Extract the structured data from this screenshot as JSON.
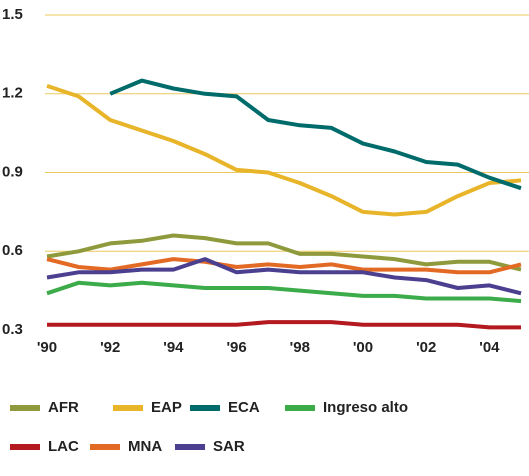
{
  "chart_data": {
    "type": "line",
    "categories": [
      "'90",
      null,
      "'92",
      null,
      "'94",
      null,
      "'96",
      null,
      "'98",
      null,
      "'00",
      null,
      "'02",
      null,
      "'04",
      null
    ],
    "ylim": [
      0.3,
      1.5
    ],
    "yticks": [
      0.3,
      0.6,
      0.9,
      1.2,
      1.5
    ],
    "grid": true,
    "grid_color": "#ecc95c",
    "legend": "bottom",
    "series": [
      {
        "name": "AFR",
        "color": "#8e9a3c",
        "values": [
          0.58,
          0.6,
          0.63,
          0.64,
          0.66,
          0.65,
          0.63,
          0.63,
          0.59,
          0.59,
          0.58,
          0.57,
          0.55,
          0.56,
          0.56,
          0.53
        ]
      },
      {
        "name": "EAP",
        "color": "#e8b52a",
        "values": [
          1.23,
          1.19,
          1.1,
          1.06,
          1.02,
          0.97,
          0.91,
          0.9,
          0.86,
          0.81,
          0.75,
          0.74,
          0.75,
          0.81,
          0.86,
          0.87
        ]
      },
      {
        "name": "ECA",
        "color": "#006b6b",
        "values": [
          null,
          null,
          1.2,
          1.25,
          1.22,
          1.2,
          1.19,
          1.1,
          1.08,
          1.07,
          1.01,
          0.98,
          0.94,
          0.93,
          0.88,
          0.84
        ]
      },
      {
        "name": "Ingreso alto",
        "color": "#3cab49",
        "values": [
          0.44,
          0.48,
          0.47,
          0.48,
          0.47,
          0.46,
          0.46,
          0.46,
          0.45,
          0.44,
          0.43,
          0.43,
          0.42,
          0.42,
          0.42,
          0.41
        ]
      },
      {
        "name": "LAC",
        "color": "#b3191f",
        "values": [
          0.32,
          0.32,
          0.32,
          0.32,
          0.32,
          0.32,
          0.32,
          0.33,
          0.33,
          0.33,
          0.32,
          0.32,
          0.32,
          0.32,
          0.31,
          0.31
        ]
      },
      {
        "name": "MNA",
        "color": "#e36a25",
        "values": [
          0.57,
          0.54,
          0.53,
          0.55,
          0.57,
          0.56,
          0.54,
          0.55,
          0.54,
          0.55,
          0.53,
          0.53,
          0.53,
          0.52,
          0.52,
          0.55
        ]
      },
      {
        "name": "SAR",
        "color": "#4b3f8f",
        "values": [
          0.5,
          0.52,
          0.52,
          0.53,
          0.53,
          0.57,
          0.52,
          0.53,
          0.52,
          0.52,
          0.52,
          0.5,
          0.49,
          0.46,
          0.47,
          0.44
        ]
      }
    ]
  }
}
